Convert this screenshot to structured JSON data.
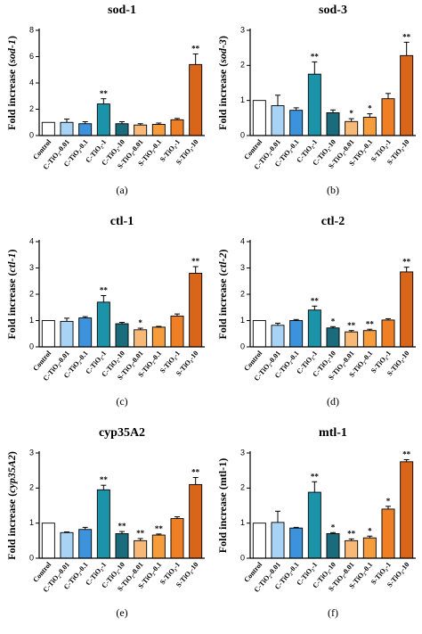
{
  "chart_data": [
    {
      "type": "bar",
      "title": "sod-1",
      "ylabel": {
        "prefix": "Fold increase (",
        "gene": "sod-1",
        "suffix": ")"
      },
      "gene_italic": true,
      "panel_label": "(a)",
      "categories": [
        "Control",
        "C-TiO₂-0.01",
        "C-TiO₂-0.1",
        "C-TiO₂-1",
        "C-TiO₂-10",
        "S-TiO₂-0.01",
        "S-TiO₂-0.1",
        "S-TiO₂-1",
        "S-TiO₂-10"
      ],
      "colors": [
        "#ffffff",
        "#a9d3f5",
        "#3d92dc",
        "#1b93a8",
        "#1a6b7c",
        "#f8b978",
        "#f59c3c",
        "#ef7f25",
        "#d9651b"
      ],
      "values": [
        1,
        1.0,
        0.9,
        2.4,
        0.9,
        0.8,
        0.85,
        1.2,
        5.4
      ],
      "errors": [
        0,
        0.25,
        0.15,
        0.4,
        0.15,
        0.1,
        0.1,
        0.1,
        0.8
      ],
      "significance": [
        null,
        null,
        null,
        "**",
        null,
        null,
        null,
        null,
        "**"
      ],
      "ylim": [
        0,
        8
      ],
      "yticks": [
        0,
        2,
        4,
        6,
        8
      ]
    },
    {
      "type": "bar",
      "title": "sod-3",
      "ylabel": {
        "prefix": "Fold increase (",
        "gene": "sod-3",
        "suffix": ")"
      },
      "gene_italic": true,
      "panel_label": "(b)",
      "categories": [
        "Control",
        "C-TiO₂-0.01",
        "C-TiO₂-0.1",
        "C-TiO₂-1",
        "C-TiO₂-10",
        "S-TiO₂-0.01",
        "S-TiO₂-0.1",
        "S-TiO₂-1",
        "S-TiO₂-10"
      ],
      "colors": [
        "#ffffff",
        "#a9d3f5",
        "#3d92dc",
        "#1b93a8",
        "#1a6b7c",
        "#f8b978",
        "#f59c3c",
        "#ef7f25",
        "#d9651b"
      ],
      "values": [
        1,
        0.85,
        0.72,
        1.75,
        0.65,
        0.4,
        0.52,
        1.05,
        2.28
      ],
      "errors": [
        0,
        0.3,
        0.07,
        0.35,
        0.08,
        0.08,
        0.1,
        0.15,
        0.38
      ],
      "significance": [
        null,
        null,
        null,
        "**",
        null,
        "*",
        "*",
        null,
        "**"
      ],
      "ylim": [
        0,
        3
      ],
      "yticks": [
        0,
        1,
        2,
        3
      ]
    },
    {
      "type": "bar",
      "title": "ctl-1",
      "ylabel": {
        "prefix": "Fold increase (",
        "gene": "ctl-1",
        "suffix": ")"
      },
      "gene_italic": true,
      "panel_label": "(c)",
      "categories": [
        "Control",
        "C-TiO₂-0.01",
        "C-TiO₂-0.1",
        "C-TiO₂-1",
        "C-TiO₂-10",
        "S-TiO₂-0.01",
        "S-TiO₂-0.1",
        "S-TiO₂-1",
        "S-TiO₂-10"
      ],
      "colors": [
        "#ffffff",
        "#a9d3f5",
        "#3d92dc",
        "#1b93a8",
        "#1a6b7c",
        "#f8b978",
        "#f59c3c",
        "#ef7f25",
        "#d9651b"
      ],
      "values": [
        1,
        0.97,
        1.1,
        1.7,
        0.88,
        0.65,
        0.75,
        1.17,
        2.8
      ],
      "errors": [
        0,
        0.12,
        0.05,
        0.25,
        0.05,
        0.06,
        0.03,
        0.08,
        0.25
      ],
      "significance": [
        null,
        null,
        null,
        "**",
        null,
        "*",
        null,
        null,
        "**"
      ],
      "ylim": [
        0,
        4
      ],
      "yticks": [
        0,
        1,
        2,
        3,
        4
      ]
    },
    {
      "type": "bar",
      "title": "ctl-2",
      "ylabel": {
        "prefix": "Fold increase (",
        "gene": "ctl-2",
        "suffix": ")"
      },
      "gene_italic": true,
      "panel_label": "(d)",
      "categories": [
        "Control",
        "C-TiO₂-0.01",
        "C-TiO₂-0.1",
        "C-TiO₂-1",
        "C-TiO₂-10",
        "S-TiO₂-0.01",
        "S-TiO₂-0.1",
        "S-TiO₂-1",
        "S-TiO₂-10"
      ],
      "colors": [
        "#ffffff",
        "#a9d3f5",
        "#3d92dc",
        "#1b93a8",
        "#1a6b7c",
        "#f8b978",
        "#f59c3c",
        "#ef7f25",
        "#d9651b"
      ],
      "values": [
        1,
        0.82,
        1.0,
        1.4,
        0.72,
        0.57,
        0.62,
        1.02,
        2.85
      ],
      "errors": [
        0,
        0.08,
        0.04,
        0.15,
        0.05,
        0.05,
        0.05,
        0.05,
        0.18
      ],
      "significance": [
        null,
        null,
        null,
        "**",
        "*",
        "**",
        "**",
        null,
        "**"
      ],
      "ylim": [
        0,
        4
      ],
      "yticks": [
        0,
        1,
        2,
        3,
        4
      ]
    },
    {
      "type": "bar",
      "title": "cyp35A2",
      "ylabel": {
        "prefix": "Fold increase (",
        "gene": "cyp35A2",
        "suffix": ")"
      },
      "gene_italic": true,
      "panel_label": "(e)",
      "categories": [
        "Control",
        "C-TiO₂-0.01",
        "C-TiO₂-0.1",
        "C-TiO₂-1",
        "C-TiO₂-10",
        "S-TiO₂-0.01",
        "S-TiO₂-0.1",
        "S-TiO₂-1",
        "S-TiO₂-10"
      ],
      "colors": [
        "#ffffff",
        "#a9d3f5",
        "#3d92dc",
        "#1b93a8",
        "#1a6b7c",
        "#f8b978",
        "#f59c3c",
        "#ef7f25",
        "#d9651b"
      ],
      "values": [
        1,
        0.73,
        0.82,
        1.95,
        0.7,
        0.5,
        0.66,
        1.13,
        2.1
      ],
      "errors": [
        0,
        0.02,
        0.06,
        0.13,
        0.06,
        0.06,
        0.03,
        0.05,
        0.2
      ],
      "significance": [
        null,
        null,
        null,
        "**",
        "**",
        "**",
        "**",
        null,
        "**"
      ],
      "ylim": [
        0,
        3
      ],
      "yticks": [
        0,
        1,
        2,
        3
      ]
    },
    {
      "type": "bar",
      "title": "mtl-1",
      "ylabel": {
        "prefix": "Fold increase (",
        "gene": "mtl-1",
        "suffix": ")"
      },
      "gene_italic": false,
      "panel_label": "(f)",
      "categories": [
        "Control",
        "C-TiO₂-0.01",
        "C-TiO₂-0.1",
        "C-TiO₂-1",
        "C-TiO₂-10",
        "S-TiO₂-0.01",
        "S-TiO₂-0.1",
        "S-TiO₂-1",
        "S-TiO₂-10"
      ],
      "colors": [
        "#ffffff",
        "#a9d3f5",
        "#3d92dc",
        "#1b93a8",
        "#1a6b7c",
        "#f8b978",
        "#f59c3c",
        "#ef7f25",
        "#d9651b"
      ],
      "values": [
        1,
        1.02,
        0.86,
        1.88,
        0.7,
        0.5,
        0.58,
        1.4,
        2.75
      ],
      "errors": [
        0,
        0.32,
        0.02,
        0.3,
        0.03,
        0.05,
        0.05,
        0.08,
        0.06
      ],
      "significance": [
        null,
        null,
        null,
        "**",
        "*",
        "**",
        "*",
        "*",
        "**"
      ],
      "ylim": [
        0,
        3
      ],
      "yticks": [
        0,
        1,
        2,
        3
      ]
    }
  ]
}
